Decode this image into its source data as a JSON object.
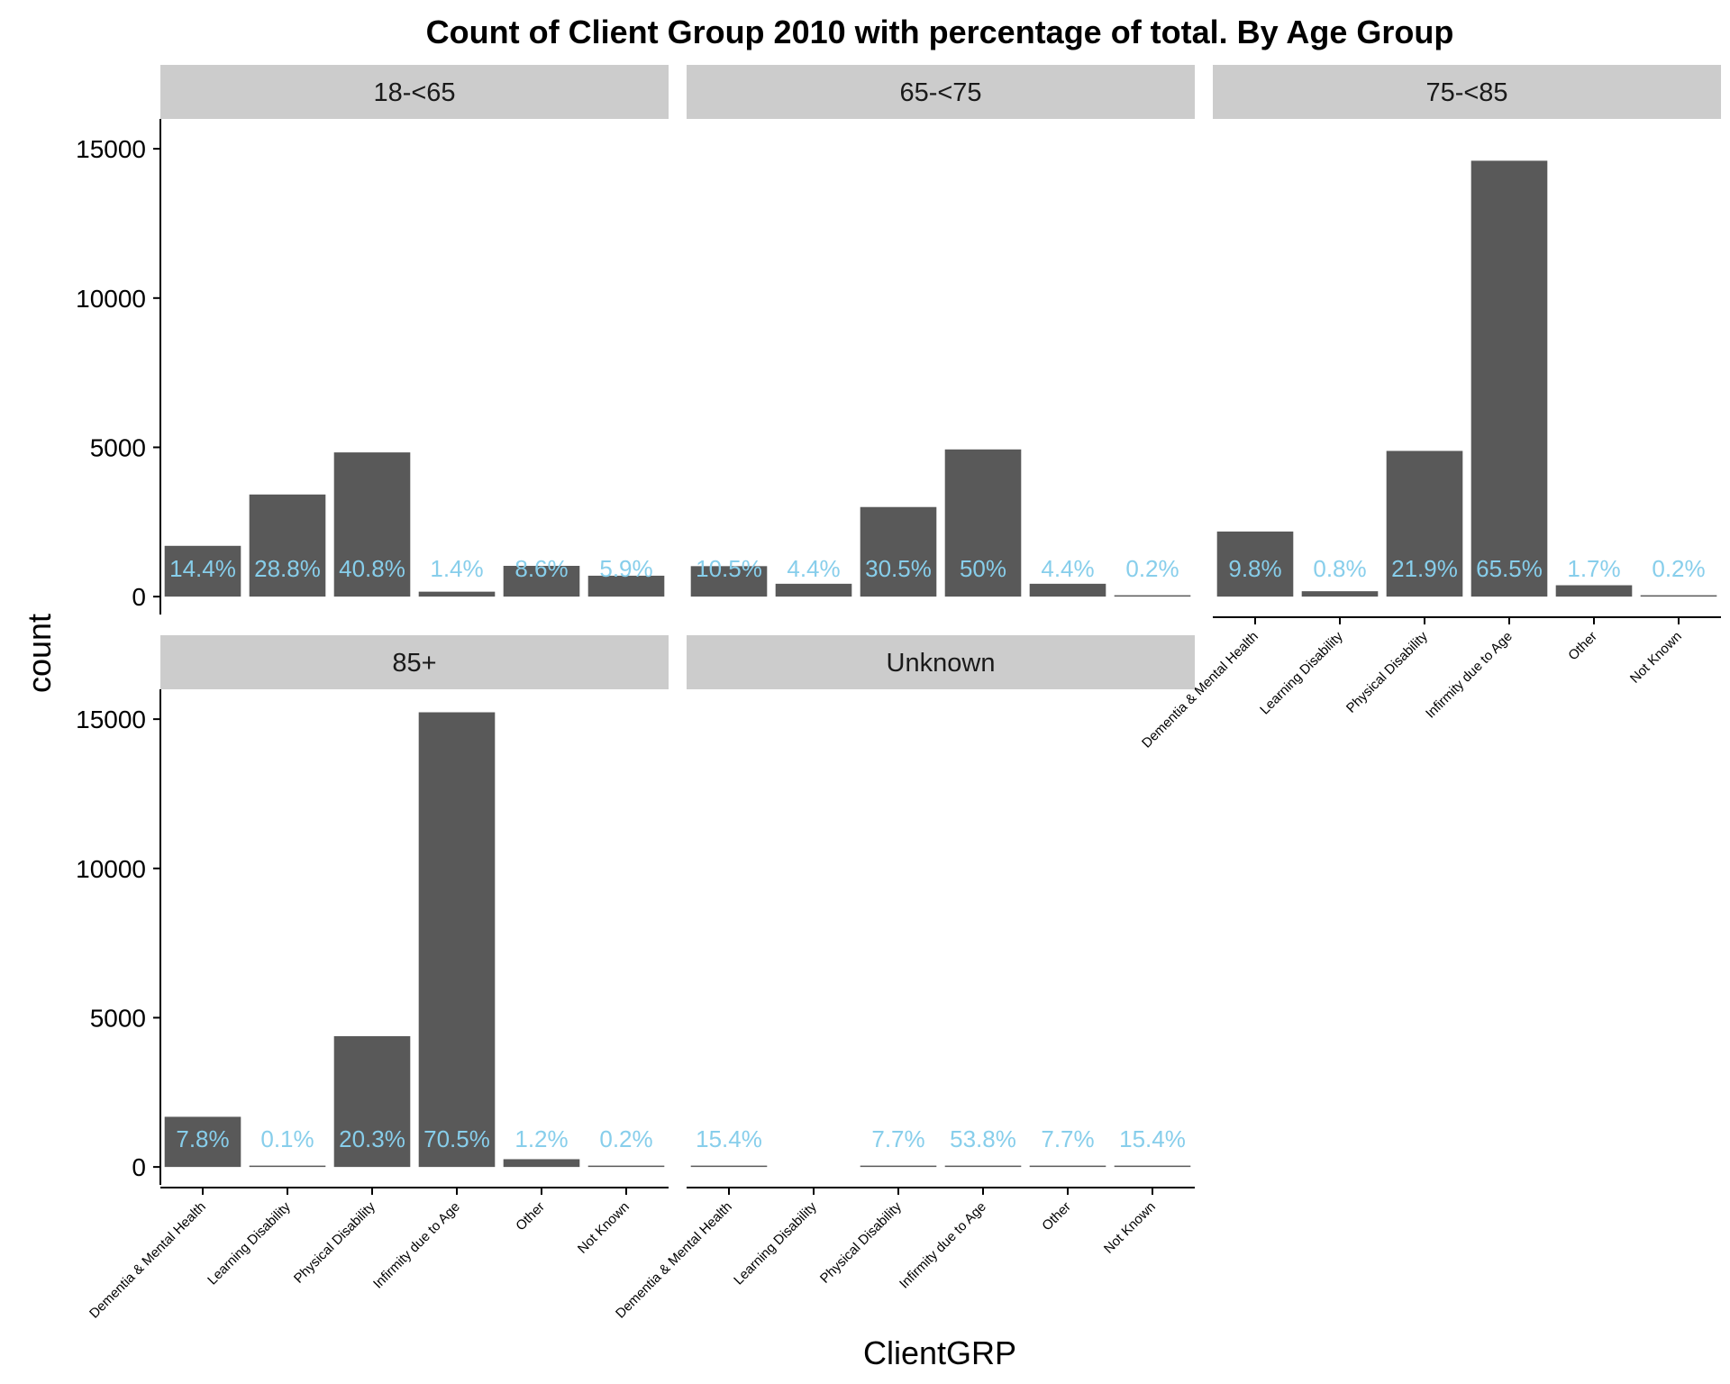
{
  "chart_data": {
    "type": "bar",
    "title": "Count of Client Group 2010 with percentage of total. By Age Group",
    "xlabel": "ClientGRP",
    "ylabel": "count",
    "ylim": [
      -600,
      16000
    ],
    "yticks": [
      0,
      5000,
      10000,
      15000
    ],
    "categories": [
      "Dementia & Mental Health",
      "Learning Disability",
      "Physical Disability",
      "Infirmity due to Age",
      "Other",
      "Not Known"
    ],
    "facets": [
      {
        "name": "18-<65",
        "values": [
          1700,
          3420,
          4830,
          165,
          1030,
          700
        ],
        "labels": [
          "14.4%",
          "28.8%",
          "40.8%",
          "1.4%",
          "8.6%",
          "5.9%"
        ]
      },
      {
        "name": "65-<75",
        "values": [
          1020,
          430,
          3000,
          4930,
          430,
          20
        ],
        "labels": [
          "10.5%",
          "4.4%",
          "30.5%",
          "50%",
          "4.4%",
          "0.2%"
        ]
      },
      {
        "name": "75-<85",
        "values": [
          2180,
          180,
          4880,
          14600,
          380,
          45
        ],
        "labels": [
          "9.8%",
          "0.8%",
          "21.9%",
          "65.5%",
          "1.7%",
          "0.2%"
        ]
      },
      {
        "name": "85+",
        "values": [
          1680,
          22,
          4380,
          15230,
          260,
          43
        ],
        "labels": [
          "7.8%",
          "0.1%",
          "20.3%",
          "70.5%",
          "1.2%",
          "0.2%"
        ]
      },
      {
        "name": "Unknown",
        "values": [
          2,
          0,
          1,
          7,
          1,
          2
        ],
        "labels": [
          "15.4%",
          "",
          "7.7%",
          "53.8%",
          "7.7%",
          "15.4%"
        ]
      }
    ],
    "grid": false,
    "legend": "none"
  }
}
